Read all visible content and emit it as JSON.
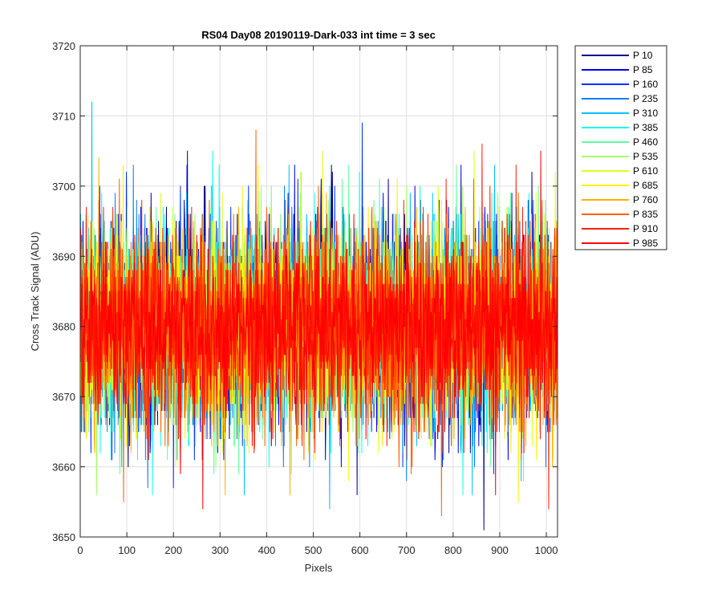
{
  "chart_data": {
    "type": "line",
    "title": "RS04 Day08 20190119-Dark-033 int time = 3 sec",
    "xlabel": "Pixels",
    "ylabel": "Cross Track Signal (ADU)",
    "xlim": [
      0,
      1024
    ],
    "ylim": [
      3650,
      3720
    ],
    "xticks": [
      0,
      100,
      200,
      300,
      400,
      500,
      600,
      700,
      800,
      900,
      1000
    ],
    "yticks": [
      3650,
      3660,
      3670,
      3680,
      3690,
      3700,
      3710,
      3720
    ],
    "grid": true,
    "legend_position": "outside-top-right",
    "series_note": "Dark-frame noise centred near 3680 ADU; each series spans pixels 0-1023",
    "series": [
      {
        "name": "P 10",
        "color": "#00008f",
        "mean": 3680,
        "sd": 7.0,
        "seed": 11,
        "peaks": [
          [
            230,
            3705
          ],
          [
            866,
            3651
          ]
        ]
      },
      {
        "name": "P 85",
        "color": "#0000df",
        "mean": 3680,
        "sd": 7.0,
        "seed": 23,
        "peaks": [
          [
            130,
            3697
          ],
          [
            520,
            3699
          ]
        ]
      },
      {
        "name": "P 160",
        "color": "#0030ff",
        "mean": 3680,
        "sd": 7.0,
        "seed": 37,
        "peaks": [
          [
            605,
            3709
          ],
          [
            200,
            3657
          ]
        ]
      },
      {
        "name": "P 235",
        "color": "#0080ff",
        "mean": 3680,
        "sd": 7.0,
        "seed": 41,
        "peaks": [
          [
            360,
            3698
          ],
          [
            700,
            3658
          ]
        ]
      },
      {
        "name": "P 310",
        "color": "#00c0ff",
        "mean": 3680,
        "sd": 7.0,
        "seed": 53,
        "peaks": [
          [
            25,
            3712
          ],
          [
            535,
            3654
          ]
        ]
      },
      {
        "name": "P 385",
        "color": "#10ffef",
        "mean": 3680,
        "sd": 7.0,
        "seed": 67,
        "peaks": [
          [
            284,
            3705
          ],
          [
            155,
            3656
          ]
        ]
      },
      {
        "name": "P 460",
        "color": "#60ffa0",
        "mean": 3680,
        "sd": 7.0,
        "seed": 71,
        "peaks": [
          [
            410,
            3700
          ],
          [
            880,
            3660
          ]
        ]
      },
      {
        "name": "P 535",
        "color": "#a0ff60",
        "mean": 3680,
        "sd": 7.0,
        "seed": 83,
        "peaks": [
          [
            35,
            3656
          ],
          [
            820,
            3700
          ]
        ]
      },
      {
        "name": "P 610",
        "color": "#dfff20",
        "mean": 3680,
        "sd": 7.0,
        "seed": 97,
        "peaks": [
          [
            845,
            3705
          ],
          [
            640,
            3662
          ]
        ]
      },
      {
        "name": "P 685",
        "color": "#ffef00",
        "mean": 3680,
        "sd": 7.0,
        "seed": 101,
        "peaks": [
          [
            520,
            3705
          ],
          [
            940,
            3655
          ]
        ]
      },
      {
        "name": "P 760",
        "color": "#ffb000",
        "mean": 3680,
        "sd": 7.0,
        "seed": 113,
        "peaks": [
          [
            40,
            3704
          ],
          [
            450,
            3656
          ]
        ]
      },
      {
        "name": "P 835",
        "color": "#ff6000",
        "mean": 3680,
        "sd": 7.0,
        "seed": 127,
        "peaks": [
          [
            377,
            3708
          ],
          [
            93,
            3655
          ],
          [
            775,
            3653
          ]
        ]
      },
      {
        "name": "P 910",
        "color": "#ff2000",
        "mean": 3680,
        "sd": 7.0,
        "seed": 131,
        "peaks": [
          [
            862,
            3706
          ],
          [
            1005,
            3654
          ]
        ]
      },
      {
        "name": "P 985",
        "color": "#ff0000",
        "mean": 3680,
        "sd": 6.2,
        "seed": 139,
        "peaks": [
          [
            263,
            3654
          ],
          [
            988,
            3705
          ]
        ]
      }
    ]
  }
}
